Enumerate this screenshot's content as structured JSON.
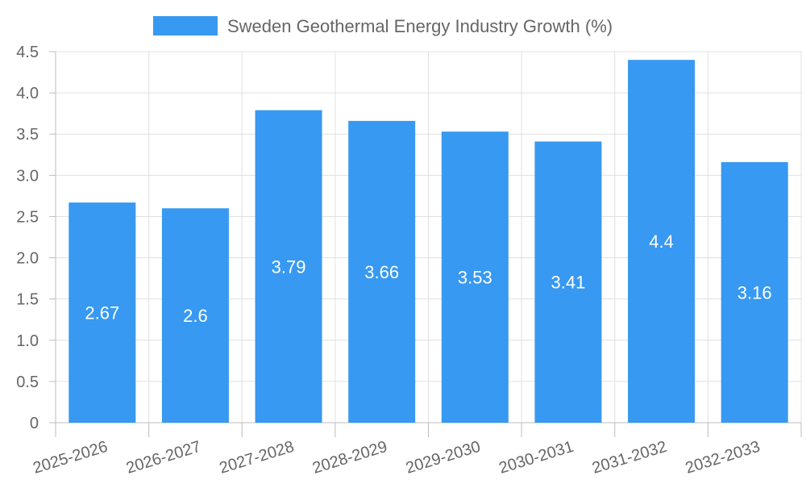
{
  "chart_data": {
    "type": "bar",
    "categories": [
      "2025-2026",
      "2026-2027",
      "2027-2028",
      "2028-2029",
      "2029-2030",
      "2030-2031",
      "2031-2032",
      "2032-2033"
    ],
    "series": [
      {
        "name": "Sweden Geothermal Energy Industry Growth (%)",
        "values": [
          2.67,
          2.6,
          3.79,
          3.66,
          3.53,
          3.41,
          4.4,
          3.16
        ],
        "color": "#3799f1"
      }
    ],
    "data_labels": [
      "2.67",
      "2.6",
      "3.79",
      "3.66",
      "3.53",
      "3.41",
      "4.4",
      "3.16"
    ],
    "y_ticks": [
      "0",
      "0.5",
      "1.0",
      "1.5",
      "2.0",
      "2.5",
      "3.0",
      "3.5",
      "4.0",
      "4.5"
    ],
    "ylim": [
      0,
      4.5
    ],
    "grid": true,
    "legend_position": "top-center"
  }
}
